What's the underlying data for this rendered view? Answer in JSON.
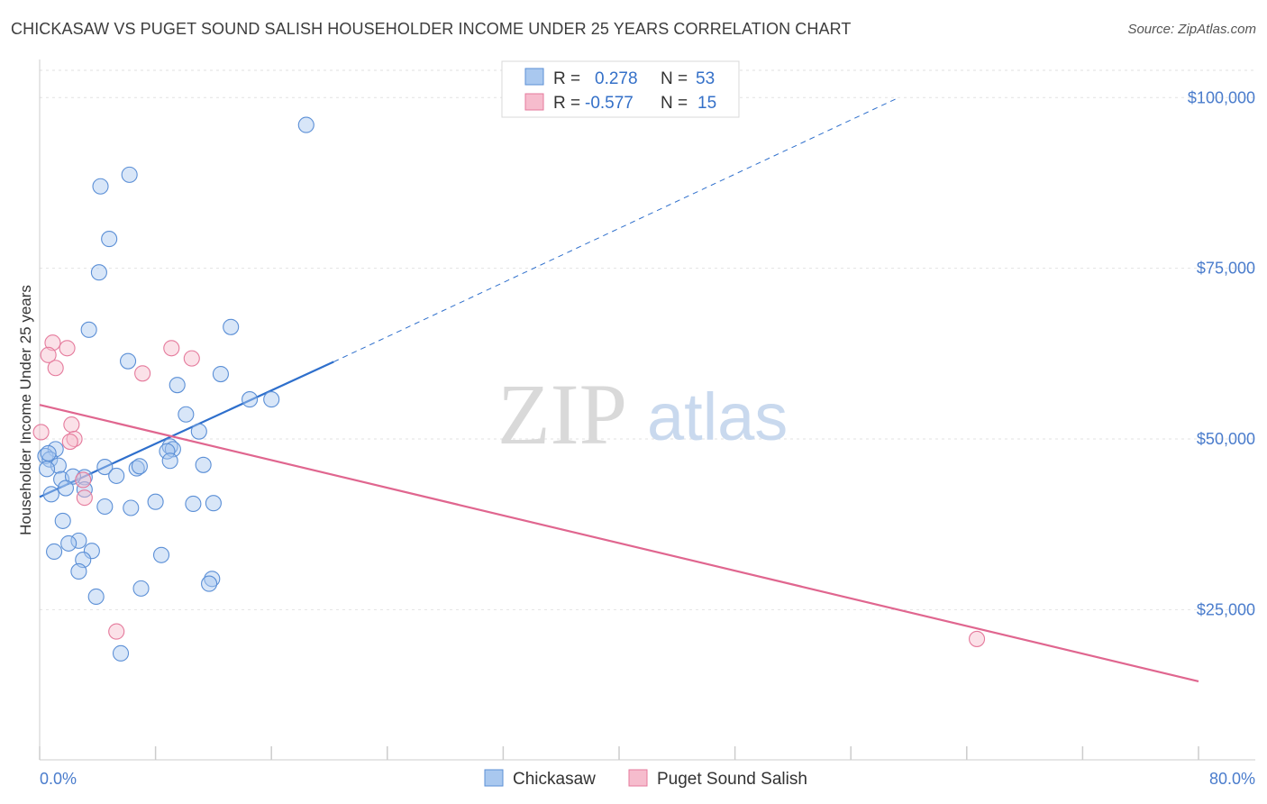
{
  "title": "CHICKASAW VS PUGET SOUND SALISH HOUSEHOLDER INCOME UNDER 25 YEARS CORRELATION CHART",
  "source": "Source: ZipAtlas.com",
  "watermark": {
    "zip": "ZIP",
    "atlas": "atlas"
  },
  "legend": {
    "rows": [
      {
        "r_label": "R =",
        "r_value": "0.278",
        "n_label": "N =",
        "n_value": "53"
      },
      {
        "r_label": "R =",
        "r_value": "-0.577",
        "n_label": "N =",
        "n_value": "15"
      }
    ]
  },
  "chart_data": {
    "type": "scatter",
    "title": "CHICKASAW VS PUGET SOUND SALISH HOUSEHOLDER INCOME UNDER 25 YEARS CORRELATION CHART",
    "xlabel": "",
    "ylabel": "Householder Income Under 25 years",
    "xlim": [
      0,
      80
    ],
    "ylim": [
      3000,
      104000
    ],
    "x_tick_labels": [
      "0.0%",
      "80.0%"
    ],
    "y_ticks": [
      25000,
      50000,
      75000,
      100000
    ],
    "y_tick_labels": [
      "$25,000",
      "$50,000",
      "$75,000",
      "$100,000"
    ],
    "grid": true,
    "colors": {
      "chickasaw_fill": "#a9c8ef",
      "chickasaw_stroke": "#5b8fd6",
      "chickasaw_line": "#2e6fcc",
      "salish_fill": "#f6bccd",
      "salish_stroke": "#e57a9c",
      "salish_line": "#e0668f",
      "grid": "#e2e2e2",
      "tick_text": "#4a7ccc"
    },
    "series": [
      {
        "name": "Chickasaw",
        "r": 0.278,
        "n": 53,
        "points": [
          [
            18.4,
            96000
          ],
          [
            6.2,
            88700
          ],
          [
            4.2,
            87000
          ],
          [
            4.8,
            79300
          ],
          [
            4.1,
            74400
          ],
          [
            3.4,
            66000
          ],
          [
            13.2,
            66400
          ],
          [
            6.1,
            61400
          ],
          [
            12.5,
            59500
          ],
          [
            9.5,
            57900
          ],
          [
            14.5,
            55800
          ],
          [
            16.0,
            55800
          ],
          [
            10.1,
            53600
          ],
          [
            11.0,
            51100
          ],
          [
            9.0,
            48900
          ],
          [
            9.2,
            48500
          ],
          [
            8.8,
            48200
          ],
          [
            1.1,
            48500
          ],
          [
            0.4,
            47500
          ],
          [
            0.7,
            47000
          ],
          [
            1.3,
            46100
          ],
          [
            9.0,
            46800
          ],
          [
            11.3,
            46200
          ],
          [
            4.5,
            45900
          ],
          [
            6.7,
            45700
          ],
          [
            6.9,
            46000
          ],
          [
            0.5,
            45600
          ],
          [
            1.5,
            44100
          ],
          [
            3.1,
            44400
          ],
          [
            5.3,
            44600
          ],
          [
            2.3,
            44500
          ],
          [
            1.8,
            42800
          ],
          [
            3.1,
            42600
          ],
          [
            0.8,
            41900
          ],
          [
            8.0,
            40800
          ],
          [
            10.6,
            40500
          ],
          [
            12.0,
            40600
          ],
          [
            4.5,
            40100
          ],
          [
            6.3,
            39900
          ],
          [
            1.6,
            38000
          ],
          [
            2.7,
            35100
          ],
          [
            2.0,
            34700
          ],
          [
            1.0,
            33500
          ],
          [
            3.6,
            33600
          ],
          [
            8.4,
            33000
          ],
          [
            3.0,
            32300
          ],
          [
            2.7,
            30600
          ],
          [
            11.9,
            29500
          ],
          [
            11.7,
            28800
          ],
          [
            7.0,
            28100
          ],
          [
            3.9,
            26900
          ],
          [
            5.6,
            18600
          ],
          [
            0.6,
            47900
          ]
        ]
      },
      {
        "name": "Puget Sound Salish",
        "r": -0.577,
        "n": 15,
        "points": [
          [
            0.9,
            64100
          ],
          [
            1.9,
            63300
          ],
          [
            9.1,
            63300
          ],
          [
            0.6,
            62300
          ],
          [
            10.5,
            61800
          ],
          [
            1.1,
            60400
          ],
          [
            7.1,
            59600
          ],
          [
            2.2,
            52100
          ],
          [
            0.1,
            51000
          ],
          [
            2.4,
            50000
          ],
          [
            2.1,
            49600
          ],
          [
            3.0,
            44000
          ],
          [
            3.1,
            41400
          ],
          [
            5.3,
            21800
          ],
          [
            64.7,
            20700
          ]
        ]
      }
    ],
    "trend_lines": [
      {
        "series": "Chickasaw",
        "solid": [
          [
            0,
            41500
          ],
          [
            20.3,
            61300
          ]
        ],
        "dashed": [
          [
            20.3,
            61300
          ],
          [
            59.3,
            100000
          ]
        ]
      },
      {
        "series": "Puget Sound Salish",
        "solid": [
          [
            0,
            55000
          ],
          [
            80,
            14500
          ]
        ]
      }
    ]
  },
  "bottom_legend": [
    {
      "label": "Chickasaw"
    },
    {
      "label": "Puget Sound Salish"
    }
  ]
}
